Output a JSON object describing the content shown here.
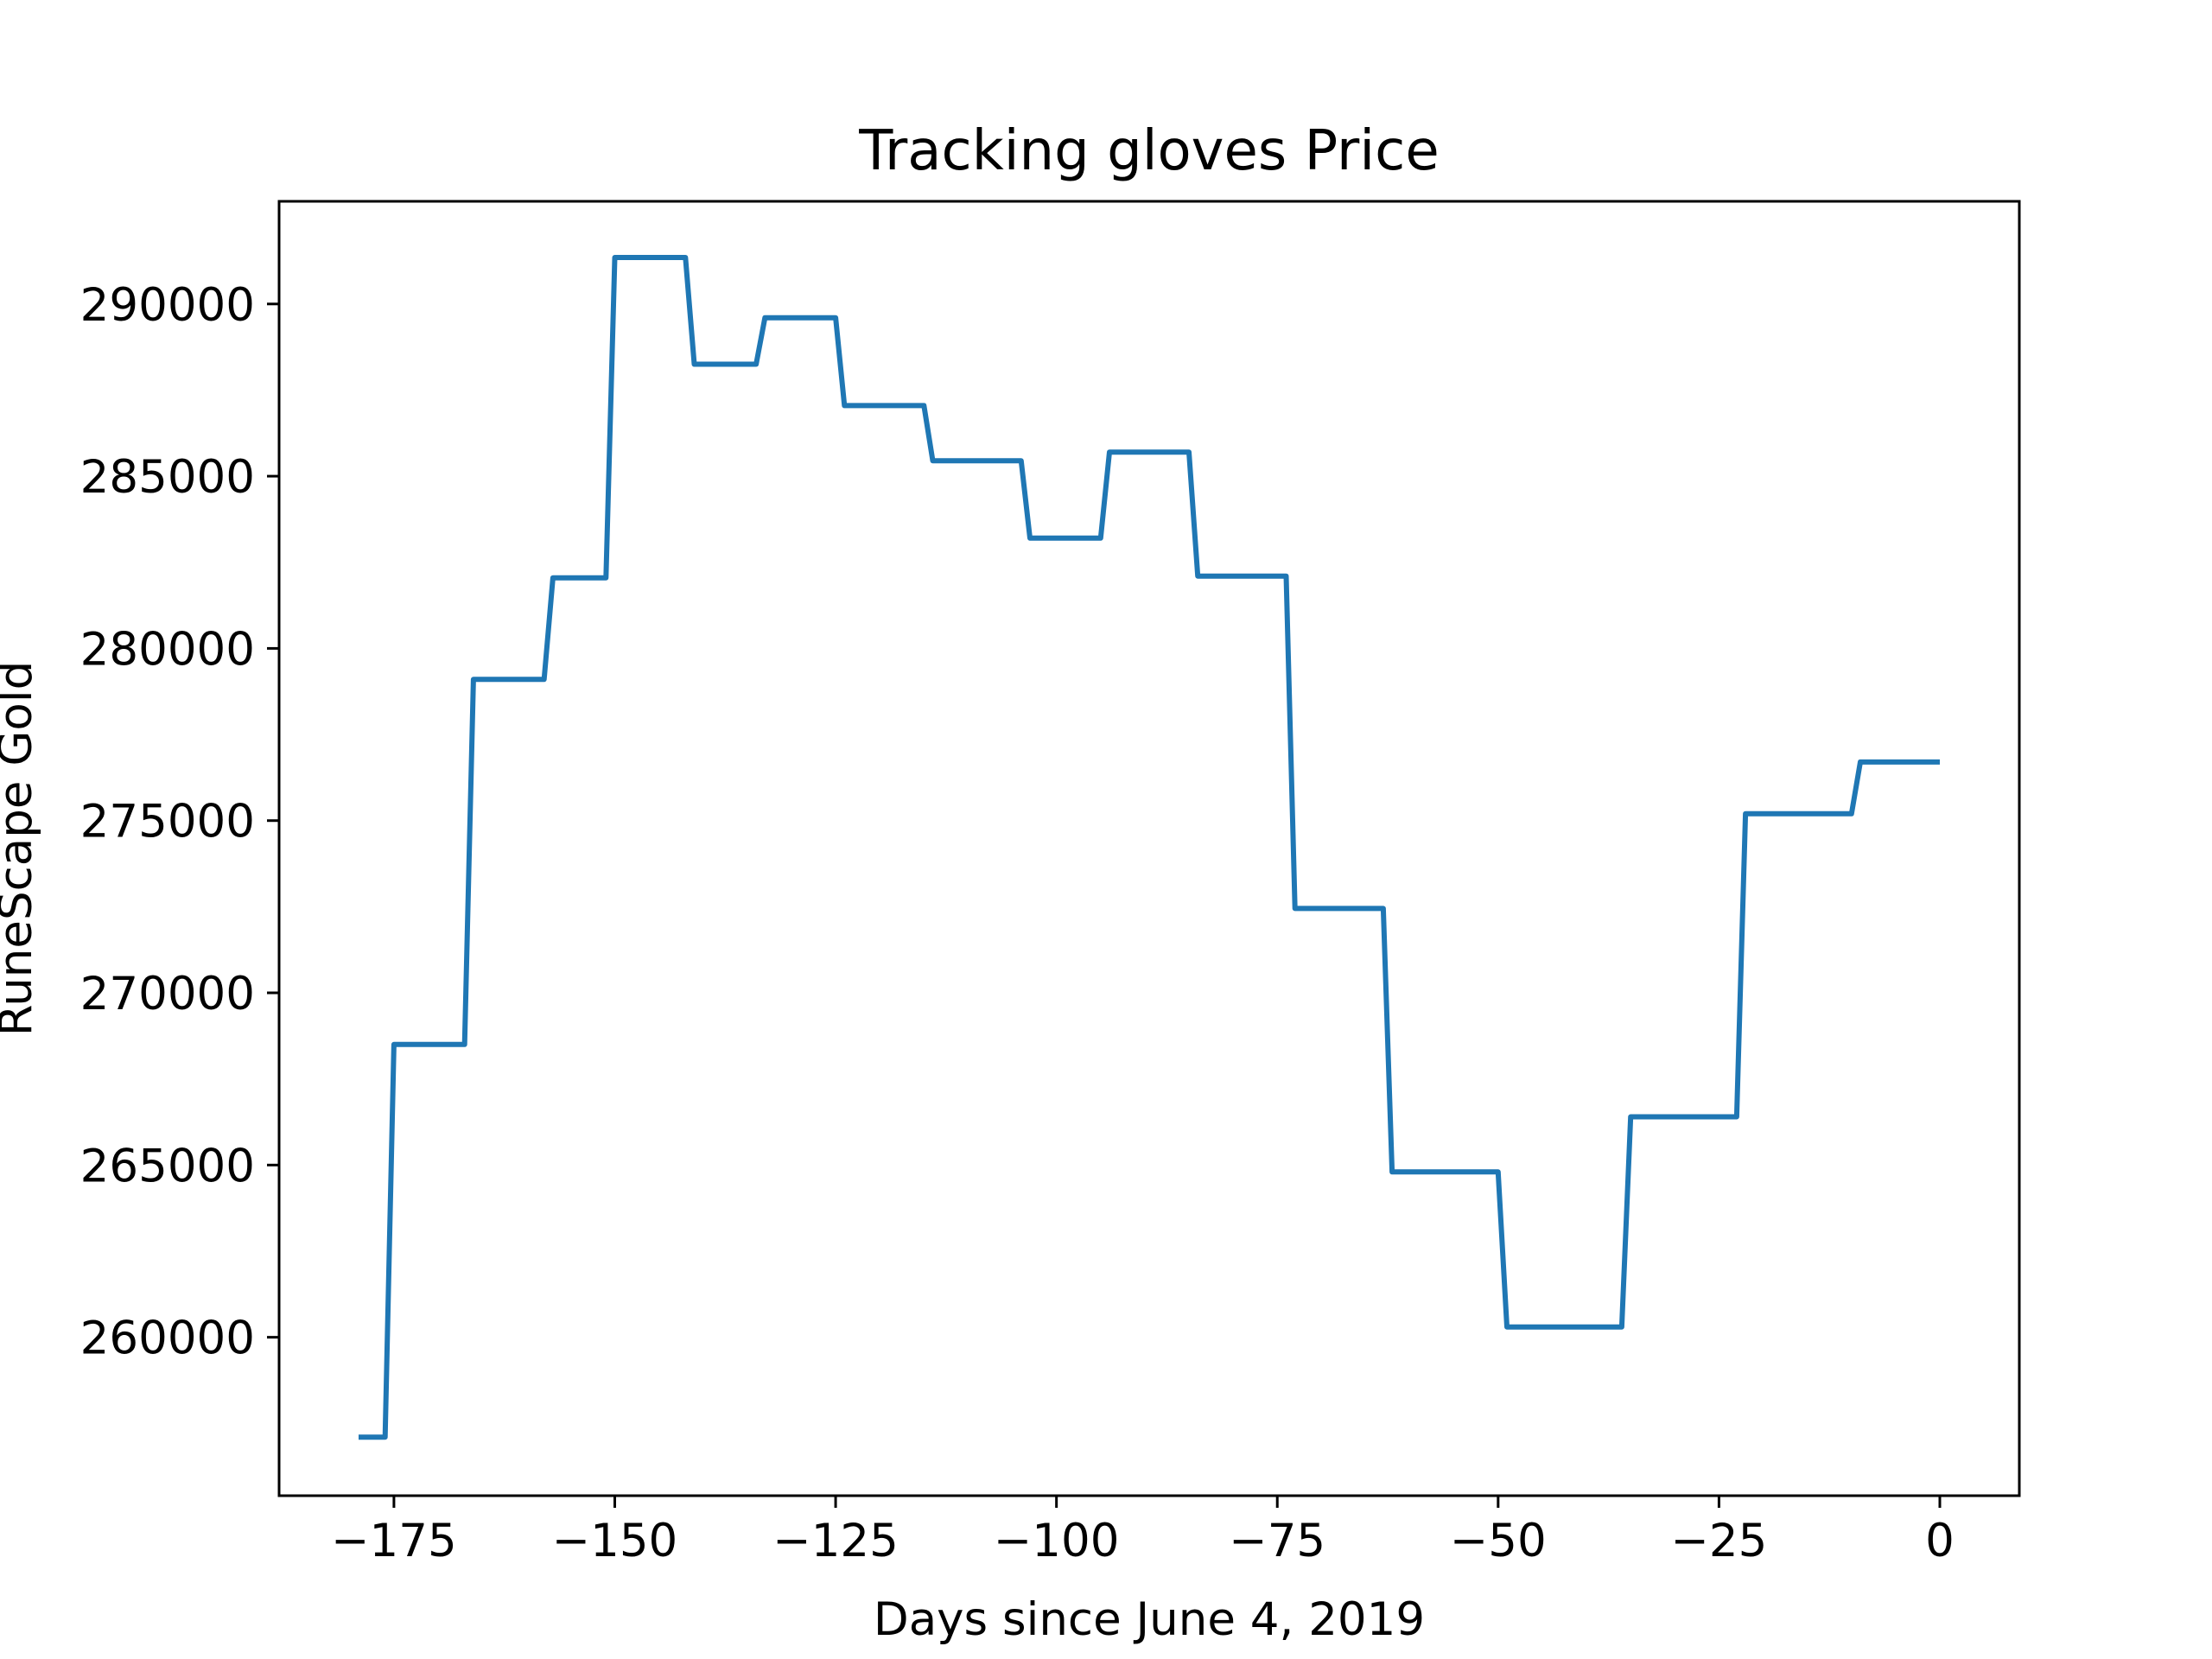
{
  "chart_data": {
    "type": "line",
    "title": "Tracking gloves Price",
    "xlabel": "Days since June 4, 2019",
    "ylabel": "RuneScape Gold",
    "xlim": [
      -188,
      9
    ],
    "ylim": [
      255400,
      292980
    ],
    "xticks": [
      -175,
      -150,
      -125,
      -100,
      -75,
      -50,
      -25,
      0
    ],
    "xtick_labels": [
      "−175",
      "−150",
      "−125",
      "−100",
      "−75",
      "−50",
      "−25",
      "0"
    ],
    "yticks": [
      260000,
      265000,
      270000,
      275000,
      280000,
      285000,
      290000
    ],
    "ytick_labels": [
      "260000",
      "265000",
      "270000",
      "275000",
      "280000",
      "285000",
      "290000"
    ],
    "grid": false,
    "color": "#1f77b4",
    "series": [
      {
        "x": [
          -179,
          -176,
          -175,
          -167,
          -166,
          -158,
          -157,
          -151,
          -150,
          -142,
          -141,
          -134,
          -133,
          -125,
          -124,
          -115,
          -114,
          -104,
          -103,
          -95,
          -94,
          -85,
          -84,
          -74,
          -73,
          -63,
          -62,
          -50,
          -49,
          -36,
          -35,
          -23,
          -22,
          -10,
          -9,
          0
        ],
        "y": [
          257100,
          257100,
          268500,
          268500,
          279100,
          279100,
          282050,
          282050,
          291350,
          291350,
          288250,
          288250,
          289600,
          289600,
          287050,
          287050,
          285450,
          285450,
          283200,
          283200,
          285700,
          285700,
          282100,
          282100,
          272450,
          272450,
          264800,
          264800,
          260300,
          260300,
          266400,
          266400,
          275200,
          275200,
          276700,
          276700
        ]
      }
    ]
  }
}
